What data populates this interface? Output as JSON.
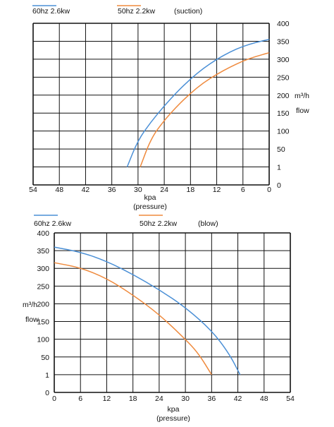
{
  "chart_data": [
    {
      "type": "line",
      "title": "",
      "annotation": "(suction)",
      "xlabel": "kpa",
      "xlabel2": "(pressure)",
      "ylabel_unit": "m³/h",
      "ylabel_word": "flow",
      "x_reversed": true,
      "xlim": [
        54,
        0
      ],
      "x_ticks": [
        "54",
        "48",
        "42",
        "36",
        "30",
        "24",
        "18",
        "12",
        "6",
        "0"
      ],
      "y_ticks": [
        "0",
        "1",
        "50",
        "100",
        "150",
        "200",
        "250",
        "300",
        "350",
        "400"
      ],
      "y_note": "tick '1' sits at the position of 25",
      "grid": true,
      "legend_position": "top-left",
      "series": [
        {
          "name": "60hz 2.6kw",
          "color": "#4a8fd6",
          "x": [
            32.5,
            30,
            27,
            24,
            21,
            18,
            15,
            12,
            9,
            6,
            3,
            0
          ],
          "y": [
            25,
            75,
            126,
            170,
            210,
            245,
            275,
            300,
            320,
            336,
            347,
            355
          ]
        },
        {
          "name": "50hz  2.2kw",
          "color": "#ef8a3d",
          "x": [
            29.5,
            27,
            24,
            21,
            18,
            15,
            12,
            9,
            6,
            3,
            0
          ],
          "y": [
            25,
            80,
            130,
            170,
            205,
            235,
            258,
            278,
            295,
            308,
            318
          ]
        }
      ]
    },
    {
      "type": "line",
      "title": "",
      "annotation": "(blow)",
      "xlabel": "kpa",
      "xlabel2": "(pressure)",
      "ylabel_unit": "m³/h",
      "ylabel_word": "flow",
      "x_reversed": false,
      "xlim": [
        0,
        54
      ],
      "x_ticks": [
        "0",
        "6",
        "12",
        "18",
        "24",
        "30",
        "36",
        "42",
        "48",
        "54"
      ],
      "y_ticks": [
        "0",
        "1",
        "50",
        "100",
        "150",
        "200",
        "250",
        "300",
        "350",
        "400"
      ],
      "y_note": "tick '1' sits at the position of 25",
      "grid": true,
      "legend_position": "top-left",
      "series": [
        {
          "name": "60hz 2.6kw",
          "color": "#4a8fd6",
          "x": [
            0,
            6,
            12,
            18,
            24,
            30,
            36,
            40,
            42.5
          ],
          "y": [
            360,
            346,
            320,
            283,
            240,
            190,
            125,
            60,
            25
          ]
        },
        {
          "name": "50hz  2.2kw",
          "color": "#ef8a3d",
          "x": [
            0,
            6,
            12,
            18,
            24,
            30,
            33,
            36
          ],
          "y": [
            316,
            302,
            272,
            225,
            170,
            100,
            60,
            25
          ]
        }
      ]
    }
  ]
}
